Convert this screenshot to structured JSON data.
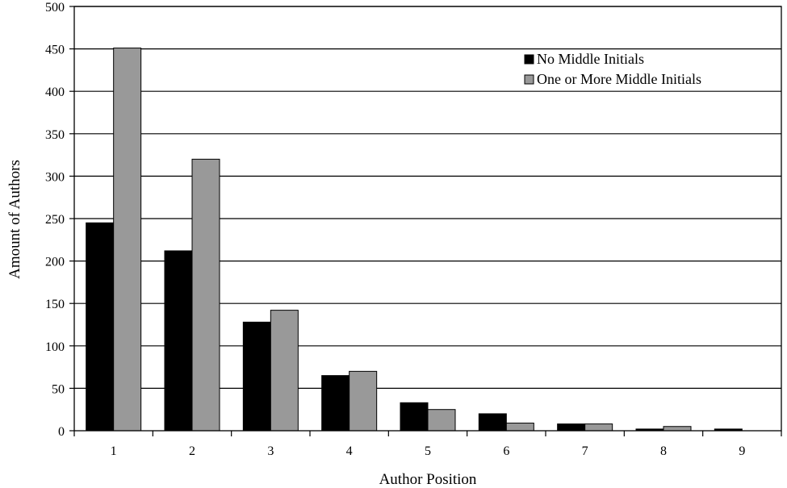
{
  "chart_data": {
    "type": "bar",
    "categories": [
      "1",
      "2",
      "3",
      "4",
      "5",
      "6",
      "7",
      "8",
      "9"
    ],
    "series": [
      {
        "name": "No Middle Initials",
        "color": "#000000",
        "values": [
          245,
          212,
          128,
          65,
          33,
          20,
          8,
          2,
          2
        ]
      },
      {
        "name": "One or More Middle Initials",
        "color": "#999999",
        "values": [
          451,
          320,
          142,
          70,
          25,
          9,
          8,
          5,
          0
        ]
      }
    ],
    "xlabel": "Author Position",
    "ylabel": "Amount of Authors",
    "ylim": [
      0,
      500
    ],
    "yticks": [
      0,
      50,
      100,
      150,
      200,
      250,
      300,
      350,
      400,
      450,
      500
    ],
    "grid": true,
    "legend_position": "top-right"
  }
}
